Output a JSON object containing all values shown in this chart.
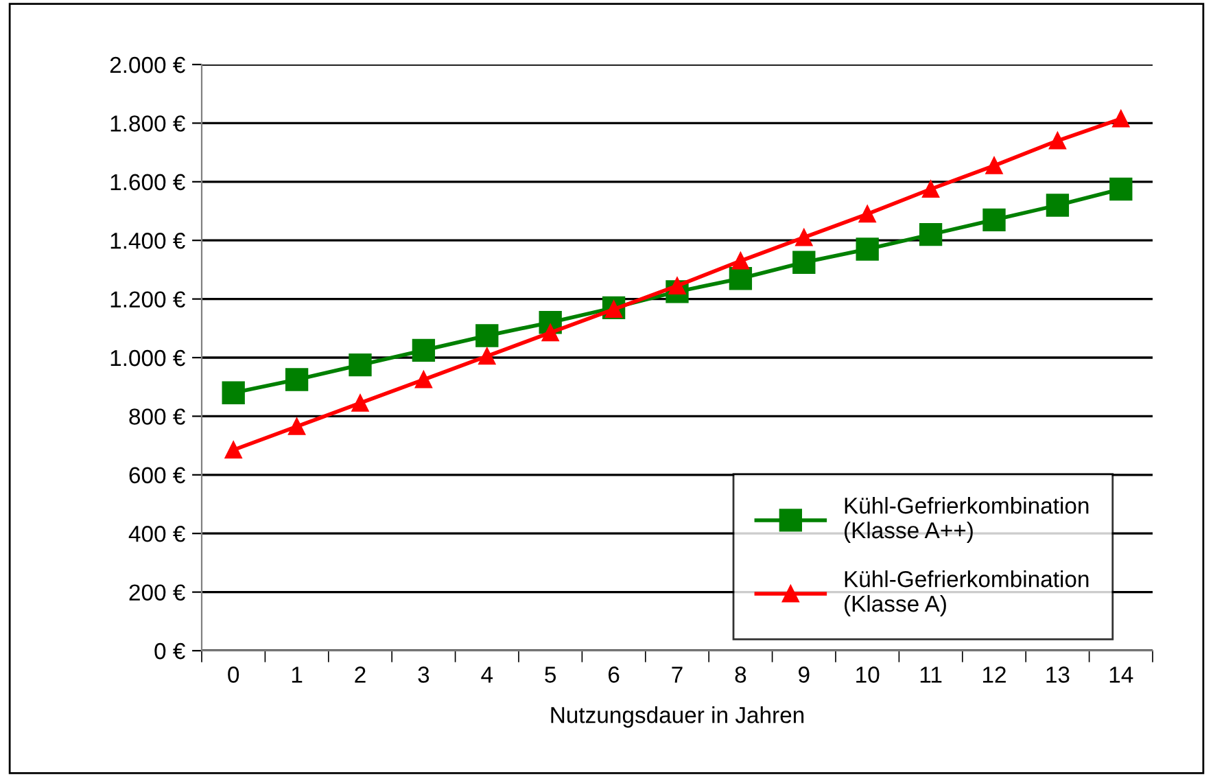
{
  "chart_data": {
    "type": "line",
    "xlabel": "Nutzungsdauer in Jahren",
    "categories": [
      "0",
      "1",
      "2",
      "3",
      "4",
      "5",
      "6",
      "7",
      "8",
      "9",
      "10",
      "11",
      "12",
      "13",
      "14"
    ],
    "series": [
      {
        "name": "Kühl-Gefrierkombination\n(Klasse A++)",
        "color": "#008000",
        "marker": "square",
        "values": [
          880,
          925,
          975,
          1025,
          1075,
          1120,
          1170,
          1225,
          1270,
          1325,
          1370,
          1420,
          1470,
          1520,
          1575
        ]
      },
      {
        "name": "Kühl-Gefrierkombination\n(Klasse A)",
        "color": "#ff0000",
        "marker": "triangle",
        "values": [
          685,
          765,
          845,
          925,
          1005,
          1085,
          1165,
          1245,
          1330,
          1410,
          1490,
          1575,
          1655,
          1740,
          1815
        ]
      }
    ],
    "ylim": [
      0,
      2000
    ],
    "yticks": [
      {
        "value": 0,
        "label": "0 €"
      },
      {
        "value": 200,
        "label": "200 €"
      },
      {
        "value": 400,
        "label": "400 €"
      },
      {
        "value": 600,
        "label": "600 €"
      },
      {
        "value": 800,
        "label": "800 €"
      },
      {
        "value": 1000,
        "label": "1.000 €"
      },
      {
        "value": 1200,
        "label": "1.200 €"
      },
      {
        "value": 1400,
        "label": "1.400 €"
      },
      {
        "value": 1600,
        "label": "1.600 €"
      },
      {
        "value": 1800,
        "label": "1.800 €"
      },
      {
        "value": 2000,
        "label": "2.000 €"
      }
    ],
    "grid": "y",
    "legend": "bottom right",
    "line_style": "solid"
  }
}
